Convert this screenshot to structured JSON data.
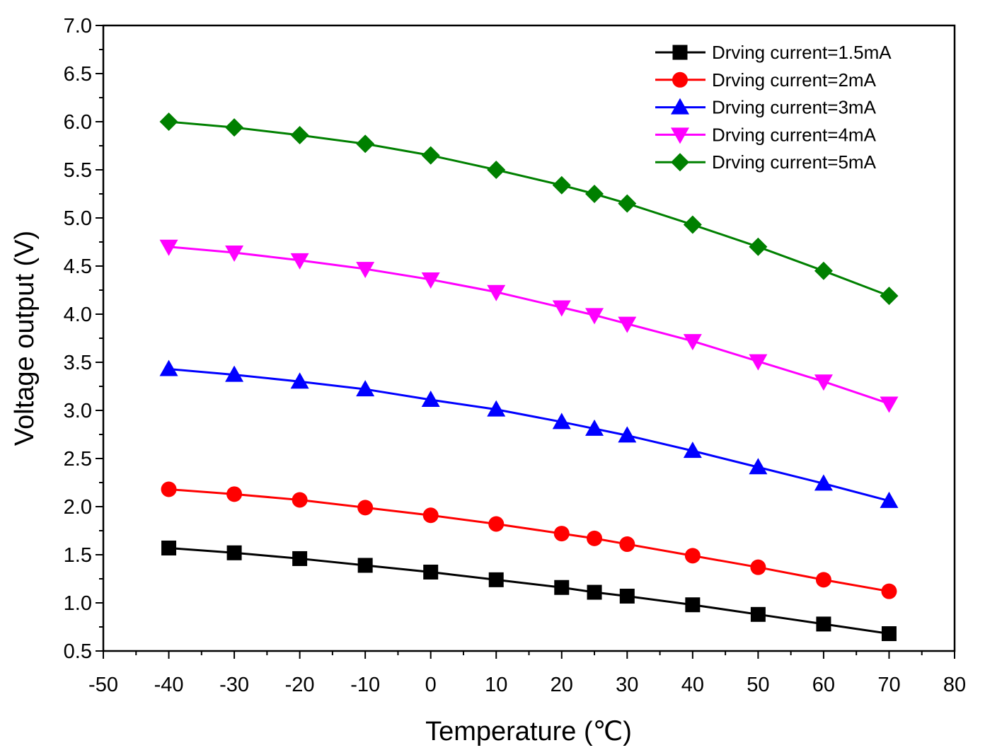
{
  "chart_data": {
    "type": "line",
    "title": "",
    "xlabel": "Temperature (℃)",
    "ylabel": "Voltage output (V)",
    "xlim": [
      -50,
      80
    ],
    "ylim": [
      0.5,
      7.0
    ],
    "x_ticks": [
      -50,
      -40,
      -30,
      -20,
      -10,
      0,
      10,
      20,
      30,
      40,
      50,
      60,
      70,
      80
    ],
    "y_ticks": [
      "0.5",
      "1.0",
      "1.5",
      "2.0",
      "2.5",
      "3.0",
      "3.5",
      "4.0",
      "4.5",
      "5.0",
      "5.5",
      "6.0",
      "6.5",
      "7.0"
    ],
    "grid": false,
    "legend_position": "top-right",
    "x": [
      -40,
      -30,
      -20,
      -10,
      0,
      10,
      20,
      25,
      30,
      40,
      50,
      60,
      70
    ],
    "series": [
      {
        "name": "Drving current=1.5mA",
        "color": "#000000",
        "marker": "square",
        "values": [
          1.57,
          1.52,
          1.46,
          1.39,
          1.32,
          1.24,
          1.16,
          1.11,
          1.07,
          0.98,
          0.88,
          0.78,
          0.68
        ]
      },
      {
        "name": "Drving current=2mA",
        "color": "#ff0000",
        "marker": "circle",
        "values": [
          2.18,
          2.13,
          2.07,
          1.99,
          1.91,
          1.82,
          1.72,
          1.67,
          1.61,
          1.49,
          1.37,
          1.24,
          1.12
        ]
      },
      {
        "name": "Drving current=3mA",
        "color": "#0000ff",
        "marker": "triangle-up",
        "values": [
          3.43,
          3.37,
          3.3,
          3.22,
          3.11,
          3.01,
          2.88,
          2.81,
          2.74,
          2.58,
          2.41,
          2.24,
          2.06
        ]
      },
      {
        "name": "Drving current=4mA",
        "color": "#ff00ff",
        "marker": "triangle-down",
        "values": [
          4.7,
          4.64,
          4.56,
          4.47,
          4.36,
          4.23,
          4.07,
          3.99,
          3.9,
          3.72,
          3.51,
          3.3,
          3.07
        ]
      },
      {
        "name": "Drving current=5mA",
        "color": "#008000",
        "marker": "diamond",
        "values": [
          6.0,
          5.94,
          5.86,
          5.77,
          5.65,
          5.5,
          5.34,
          5.25,
          5.15,
          4.93,
          4.7,
          4.45,
          4.19
        ]
      }
    ]
  }
}
